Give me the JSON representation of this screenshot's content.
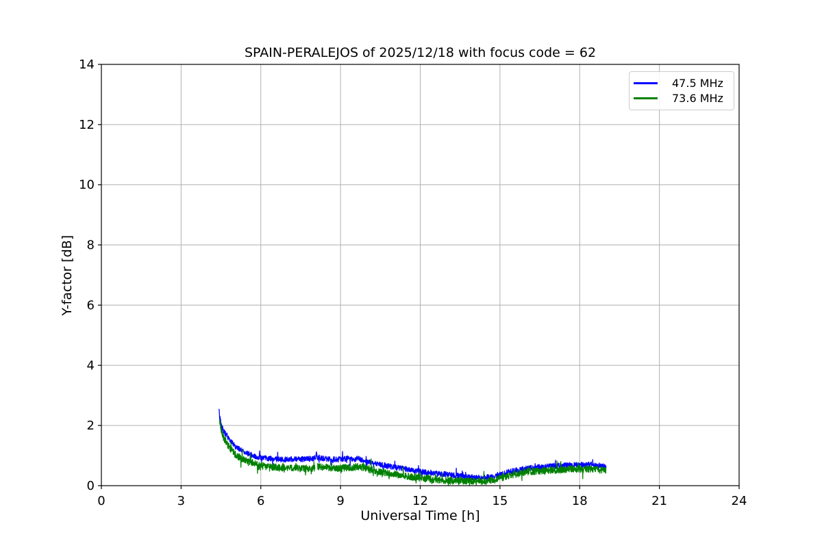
{
  "chart_data": {
    "type": "line",
    "title": "SPAIN-PERALEJOS of 2025/12/18 with focus code = 62",
    "xlabel": "Universal Time [h]",
    "ylabel": "Y-factor [dB]",
    "xlim": [
      0,
      24
    ],
    "ylim": [
      0,
      14
    ],
    "xticks": [
      0,
      3,
      6,
      9,
      12,
      15,
      18,
      21,
      24
    ],
    "yticks": [
      0,
      2,
      4,
      6,
      8,
      10,
      12,
      14
    ],
    "grid": true,
    "grid_color": "#b0b0b0",
    "background": "#ffffff",
    "legend_position": "upper right",
    "series": [
      {
        "name": "47.5 MHz",
        "color": "#0000ff",
        "noise_amplitude": 0.09,
        "segments": [
          [
            [
              4.42,
              2.52
            ],
            [
              4.46,
              2.25
            ],
            [
              4.5,
              2.05
            ],
            [
              4.55,
              1.93
            ],
            [
              4.6,
              1.83
            ],
            [
              4.7,
              1.68
            ],
            [
              4.8,
              1.55
            ],
            [
              4.9,
              1.44
            ],
            [
              5.0,
              1.34
            ],
            [
              5.1,
              1.27
            ],
            [
              5.2,
              1.21
            ],
            [
              5.35,
              1.13
            ],
            [
              5.5,
              1.07
            ],
            [
              5.7,
              1.0
            ],
            [
              5.9,
              0.95
            ],
            [
              6.1,
              0.92
            ],
            [
              6.4,
              0.89
            ],
            [
              6.7,
              0.87
            ],
            [
              7.0,
              0.87
            ],
            [
              7.3,
              0.88
            ],
            [
              7.6,
              0.88
            ],
            [
              7.9,
              0.9
            ],
            [
              8.05,
              0.92
            ],
            [
              8.09,
              1.04
            ],
            [
              8.13,
              0.93
            ],
            [
              8.3,
              0.9
            ],
            [
              8.6,
              0.88
            ],
            [
              8.9,
              0.87
            ],
            [
              9.1,
              0.88
            ],
            [
              9.3,
              0.91
            ],
            [
              9.5,
              0.88
            ],
            [
              9.65,
              0.9
            ],
            [
              9.8,
              0.85
            ],
            [
              10.0,
              0.79
            ],
            [
              10.2,
              0.75
            ],
            [
              10.5,
              0.7
            ],
            [
              10.8,
              0.65
            ],
            [
              11.1,
              0.6
            ],
            [
              11.4,
              0.56
            ],
            [
              11.7,
              0.51
            ],
            [
              12.0,
              0.47
            ],
            [
              12.3,
              0.44
            ],
            [
              12.6,
              0.41
            ],
            [
              12.9,
              0.39
            ],
            [
              13.2,
              0.36
            ],
            [
              13.5,
              0.32
            ],
            [
              13.8,
              0.29
            ],
            [
              14.1,
              0.27
            ],
            [
              14.4,
              0.26
            ],
            [
              14.7,
              0.3
            ],
            [
              15.0,
              0.38
            ],
            [
              15.3,
              0.45
            ],
            [
              15.6,
              0.52
            ],
            [
              15.9,
              0.56
            ],
            [
              16.2,
              0.59
            ],
            [
              16.5,
              0.62
            ],
            [
              16.8,
              0.64
            ],
            [
              17.1,
              0.66
            ],
            [
              17.4,
              0.67
            ],
            [
              17.7,
              0.69
            ],
            [
              18.0,
              0.7
            ],
            [
              18.2,
              0.69
            ],
            [
              18.4,
              0.7
            ],
            [
              18.6,
              0.68
            ],
            [
              18.8,
              0.66
            ],
            [
              19.0,
              0.62
            ]
          ]
        ]
      },
      {
        "name": "73.6 MHz",
        "color": "#008000",
        "noise_amplitude": 0.12,
        "segments": [
          [
            [
              4.45,
              2.15
            ],
            [
              4.5,
              1.88
            ],
            [
              4.55,
              1.72
            ],
            [
              4.6,
              1.6
            ],
            [
              4.7,
              1.44
            ],
            [
              4.8,
              1.3
            ],
            [
              4.9,
              1.18
            ],
            [
              5.0,
              1.08
            ],
            [
              5.1,
              1.0
            ],
            [
              5.2,
              0.94
            ],
            [
              5.35,
              0.86
            ],
            [
              5.5,
              0.8
            ],
            [
              5.7,
              0.73
            ],
            [
              5.9,
              0.68
            ],
            [
              6.1,
              0.65
            ],
            [
              6.4,
              0.62
            ],
            [
              6.7,
              0.6
            ],
            [
              7.0,
              0.59
            ],
            [
              7.3,
              0.58
            ],
            [
              7.6,
              0.56
            ],
            [
              7.9,
              0.57
            ],
            [
              8.04,
              0.58
            ]
          ],
          [
            [
              8.13,
              0.66
            ],
            [
              8.3,
              0.62
            ],
            [
              8.6,
              0.6
            ],
            [
              8.9,
              0.58
            ],
            [
              9.2,
              0.59
            ],
            [
              9.5,
              0.61
            ],
            [
              9.7,
              0.63
            ],
            [
              9.9,
              0.6
            ],
            [
              10.1,
              0.54
            ],
            [
              10.4,
              0.48
            ],
            [
              10.7,
              0.43
            ],
            [
              11.0,
              0.39
            ],
            [
              11.3,
              0.34
            ],
            [
              11.6,
              0.3
            ],
            [
              11.9,
              0.27
            ],
            [
              12.2,
              0.24
            ],
            [
              12.5,
              0.22
            ],
            [
              12.8,
              0.19
            ],
            [
              13.1,
              0.17
            ],
            [
              13.4,
              0.16
            ],
            [
              13.7,
              0.15
            ],
            [
              14.0,
              0.14
            ],
            [
              14.3,
              0.14
            ],
            [
              14.6,
              0.16
            ],
            [
              14.9,
              0.22
            ],
            [
              15.2,
              0.3
            ],
            [
              15.5,
              0.37
            ],
            [
              15.8,
              0.42
            ],
            [
              16.1,
              0.46
            ],
            [
              16.4,
              0.49
            ],
            [
              16.7,
              0.51
            ],
            [
              17.0,
              0.52
            ],
            [
              17.3,
              0.53
            ],
            [
              17.6,
              0.55
            ],
            [
              17.9,
              0.56
            ],
            [
              18.1,
              0.55
            ],
            [
              18.4,
              0.56
            ],
            [
              18.7,
              0.54
            ],
            [
              19.0,
              0.5
            ]
          ]
        ]
      }
    ]
  }
}
